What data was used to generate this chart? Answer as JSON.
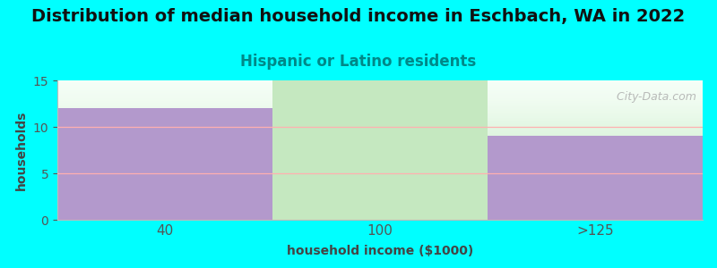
{
  "title": "Distribution of median household income in Eschbach, WA in 2022",
  "subtitle": "Hispanic or Latino residents",
  "xlabel": "household income ($1000)",
  "ylabel": "households",
  "background_color": "#00FFFF",
  "categories": [
    "40",
    "100",
    ">125"
  ],
  "values": [
    12,
    0,
    9
  ],
  "bar_colors": [
    "#b399cc",
    "#c5e8c0",
    "#b399cc"
  ],
  "bar_heights_full": [
    false,
    true,
    false
  ],
  "ylim": [
    0,
    15
  ],
  "yticks": [
    0,
    5,
    10,
    15
  ],
  "title_fontsize": 14,
  "subtitle_fontsize": 12,
  "subtitle_color": "#008888",
  "axis_label_color": "#444444",
  "tick_label_color": "#555555",
  "watermark": "  City-Data.com",
  "grid_color": "#ffb0b0",
  "plot_bg_gradient_top": "#e8f8f0",
  "plot_bg_gradient_bottom": "#ffffff"
}
